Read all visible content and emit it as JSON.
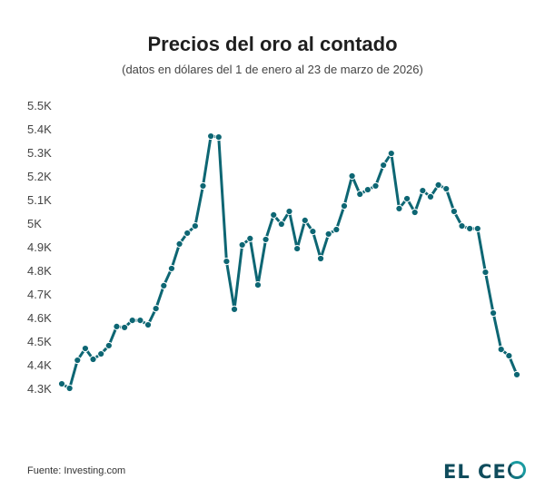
{
  "chart_data": {
    "type": "line",
    "title": "Precios del oro al contado",
    "subtitle": "(datos en dólares del 1 de enero al 23 de marzo de 2026)",
    "xlabel": "",
    "ylabel": "",
    "ylim": [
      4300,
      5500
    ],
    "yticks": [
      {
        "value": 5500,
        "label": "5.5K"
      },
      {
        "value": 5400,
        "label": "5.4K"
      },
      {
        "value": 5300,
        "label": "5.3K"
      },
      {
        "value": 5200,
        "label": "5.2K"
      },
      {
        "value": 5100,
        "label": "5.1K"
      },
      {
        "value": 5000,
        "label": "5K"
      },
      {
        "value": 4900,
        "label": "4.9K"
      },
      {
        "value": 4800,
        "label": "4.8K"
      },
      {
        "value": 4700,
        "label": "4.7K"
      },
      {
        "value": 4600,
        "label": "4.6K"
      },
      {
        "value": 4500,
        "label": "4.5K"
      },
      {
        "value": 4400,
        "label": "4.4K"
      },
      {
        "value": 4300,
        "label": "4.3K"
      }
    ],
    "grid": false,
    "series": [
      {
        "name": "Precio del oro",
        "color": "#0d6673",
        "values": [
          4319,
          4300,
          4419,
          4469,
          4423,
          4446,
          4481,
          4562,
          4558,
          4588,
          4588,
          4569,
          4638,
          4735,
          4808,
          4912,
          4958,
          4988,
          5158,
          5369,
          5365,
          4838,
          4635,
          4908,
          4935,
          4738,
          4931,
          5035,
          4996,
          5050,
          4892,
          5012,
          4965,
          4850,
          4954,
          4973,
          5073,
          5200,
          5123,
          5142,
          5158,
          5246,
          5296,
          5062,
          5104,
          5046,
          5138,
          5112,
          5162,
          5146,
          5050,
          4988,
          4977,
          4977,
          4792,
          4619,
          4465,
          4438,
          4358
        ]
      }
    ]
  },
  "footer": {
    "source": "Fuente: Investing.com",
    "logo_text": "EL CE",
    "logo_last": ""
  }
}
